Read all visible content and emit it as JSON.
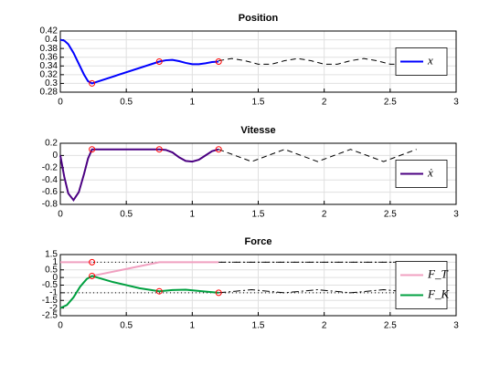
{
  "chart_data": [
    {
      "type": "line",
      "title": "Position",
      "xlim": [
        0,
        3
      ],
      "xticks": [
        0,
        0.5,
        1,
        1.5,
        2,
        2.5,
        3
      ],
      "ylim": [
        0.28,
        0.42
      ],
      "yticks": [
        0.28,
        0.3,
        0.32,
        0.34,
        0.36,
        0.38,
        0.4,
        0.42
      ],
      "grid": true,
      "legend": "east",
      "series": [
        {
          "name": "x",
          "color": "#0000ff",
          "dash": "solid",
          "x": [
            0,
            0.03,
            0.06,
            0.1,
            0.14,
            0.18,
            0.21,
            0.24,
            0.75,
            0.8,
            0.85,
            0.9,
            0.95,
            1.0,
            1.05,
            1.1,
            1.15,
            1.2
          ],
          "values": [
            0.4,
            0.398,
            0.39,
            0.37,
            0.345,
            0.32,
            0.305,
            0.3,
            0.35,
            0.353,
            0.354,
            0.351,
            0.347,
            0.344,
            0.344,
            0.346,
            0.349,
            0.35
          ]
        },
        {
          "color": "#000000",
          "dash": "dashed",
          "x": [
            1.2,
            1.3,
            1.4,
            1.5,
            1.6,
            1.7,
            1.8,
            1.9,
            2.0,
            2.1,
            2.2,
            2.3,
            2.4,
            2.5,
            2.6,
            2.7
          ],
          "values": [
            0.352,
            0.357,
            0.352,
            0.344,
            0.344,
            0.352,
            0.357,
            0.352,
            0.344,
            0.344,
            0.352,
            0.357,
            0.352,
            0.344,
            0.344,
            0.352
          ]
        },
        {
          "color": "#ff0000",
          "marker": "circle",
          "x": [
            0.24,
            0.75,
            1.2
          ],
          "values": [
            0.3,
            0.35,
            0.35
          ]
        }
      ]
    },
    {
      "type": "line",
      "title": "Vitesse",
      "xlim": [
        0,
        3
      ],
      "xticks": [
        0,
        0.5,
        1,
        1.5,
        2,
        2.5,
        3
      ],
      "ylim": [
        -0.8,
        0.2
      ],
      "yticks": [
        -0.8,
        -0.6,
        -0.4,
        -0.2,
        0,
        0.2
      ],
      "grid": true,
      "legend": "east",
      "series": [
        {
          "name": "ẋ",
          "color": "#4b0082",
          "dash": "solid",
          "x": [
            0,
            0.03,
            0.06,
            0.1,
            0.14,
            0.18,
            0.21,
            0.24,
            0.75,
            0.8,
            0.85,
            0.9,
            0.95,
            1.0,
            1.05,
            1.1,
            1.15,
            1.2
          ],
          "values": [
            0,
            -0.35,
            -0.62,
            -0.73,
            -0.6,
            -0.3,
            -0.05,
            0.1,
            0.1,
            0.09,
            0.05,
            -0.03,
            -0.09,
            -0.1,
            -0.07,
            0,
            0.07,
            0.1
          ]
        },
        {
          "color": "#000000",
          "dash": "dashed",
          "x": [
            1.2,
            1.325,
            1.45,
            1.575,
            1.7,
            1.825,
            1.95,
            2.075,
            2.2,
            2.325,
            2.45,
            2.575,
            2.7
          ],
          "values": [
            0.1,
            0,
            -0.1,
            0,
            0.1,
            0,
            -0.1,
            0,
            0.1,
            0,
            -0.1,
            0,
            0.1
          ]
        },
        {
          "color": "#ff0000",
          "marker": "circle",
          "x": [
            0.24,
            0.75,
            1.2
          ],
          "values": [
            0.1,
            0.1,
            0.1
          ]
        }
      ]
    },
    {
      "type": "line",
      "title": "Force",
      "xlim": [
        0,
        3
      ],
      "xticks": [
        0,
        0.5,
        1,
        1.5,
        2,
        2.5,
        3
      ],
      "ylim": [
        -2.5,
        1.5
      ],
      "yticks": [
        -2.5,
        -2,
        -1.5,
        -1,
        -0.5,
        0,
        0.5,
        1,
        1.5
      ],
      "grid": true,
      "legend": "east",
      "series": [
        {
          "color": "#000000",
          "dash": "dotted",
          "x": [
            0,
            2.7
          ],
          "values": [
            1,
            1
          ]
        },
        {
          "color": "#000000",
          "dash": "dotted",
          "x": [
            0,
            2.7
          ],
          "values": [
            -1,
            -1
          ]
        },
        {
          "name": "F_T",
          "color": "#f0a0c0",
          "dash": "solid",
          "x": [
            0,
            0.24,
            0.24,
            0.24,
            0.75,
            1.2
          ],
          "values": [
            1,
            1,
            null,
            0.1,
            1,
            1
          ]
        },
        {
          "name": "F_K",
          "color": "#00a040",
          "dash": "solid",
          "x": [
            0,
            0.05,
            0.1,
            0.15,
            0.2,
            0.24,
            0.4,
            0.6,
            0.75,
            0.85,
            0.95,
            1.05,
            1.2
          ],
          "values": [
            -2,
            -1.8,
            -1.3,
            -0.6,
            -0.1,
            0.1,
            -0.3,
            -0.7,
            -0.9,
            -0.82,
            -0.8,
            -0.88,
            -1.0
          ]
        },
        {
          "color": "#000000",
          "dash": "dashdot",
          "x": [
            1.2,
            2.7
          ],
          "values": [
            1,
            1
          ]
        },
        {
          "color": "#000000",
          "dash": "dashdot",
          "x": [
            1.2,
            1.325,
            1.45,
            1.575,
            1.7,
            1.825,
            1.95,
            2.075,
            2.2,
            2.325,
            2.45,
            2.575,
            2.7
          ],
          "values": [
            -1,
            -0.9,
            -0.8,
            -0.9,
            -1,
            -0.9,
            -0.8,
            -0.9,
            -1,
            -0.9,
            -0.8,
            -0.9,
            -1
          ]
        },
        {
          "color": "#ff0000",
          "marker": "circle",
          "x": [
            0.24,
            0.24,
            0.75,
            1.2
          ],
          "values": [
            1,
            0.1,
            -0.9,
            -1
          ]
        }
      ]
    }
  ]
}
